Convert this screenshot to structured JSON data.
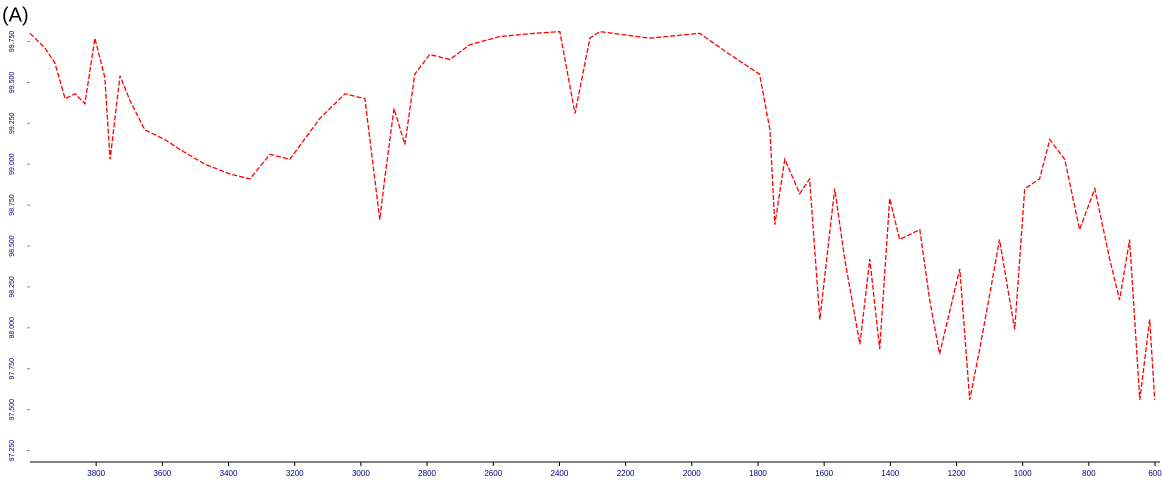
{
  "chart_data": {
    "type": "line",
    "title": "(A)",
    "x": [
      4000,
      3955,
      3925,
      3894,
      3864,
      3834,
      3804,
      3774,
      3758,
      3728,
      3698,
      3653,
      3592,
      3547,
      3471,
      3396,
      3335,
      3275,
      3215,
      3124,
      3048,
      2988,
      2943,
      2928,
      2900,
      2867,
      2837,
      2792,
      2731,
      2671,
      2580,
      2474,
      2399,
      2353,
      2308,
      2278,
      2127,
      1976,
      1885,
      1795,
      1764,
      1749,
      1719,
      1674,
      1644,
      1613,
      1568,
      1538,
      1492,
      1462,
      1432,
      1402,
      1372,
      1311,
      1281,
      1251,
      1190,
      1160,
      1130,
      1100,
      1070,
      1024,
      994,
      949,
      918,
      873,
      828,
      782,
      737,
      707,
      677,
      646,
      616,
      601
    ],
    "series": [
      {
        "color": "#ff0000",
        "values": [
          99.8,
          99.71,
          99.62,
          99.4,
          99.43,
          99.37,
          99.77,
          99.53,
          99.03,
          99.54,
          99.39,
          99.21,
          99.15,
          99.09,
          99.0,
          98.94,
          98.91,
          99.06,
          99.03,
          99.28,
          99.43,
          99.4,
          98.66,
          98.91,
          99.34,
          99.12,
          99.55,
          99.67,
          99.64,
          99.73,
          99.78,
          99.8,
          99.81,
          99.31,
          99.77,
          99.81,
          99.77,
          99.8,
          99.67,
          99.55,
          99.21,
          98.63,
          99.03,
          98.82,
          98.91,
          98.05,
          98.85,
          98.42,
          97.9,
          98.42,
          97.87,
          98.79,
          98.54,
          98.6,
          98.17,
          97.84,
          98.36,
          97.56,
          97.87,
          98.2,
          98.54,
          97.99,
          98.85,
          98.91,
          99.15,
          99.03,
          98.6,
          98.85,
          98.42,
          98.17,
          98.54,
          97.56,
          98.05,
          97.56
        ]
      }
    ],
    "xlim": [
      4000,
      585
    ],
    "xticks": [
      3800,
      3600,
      3400,
      3200,
      3000,
      2800,
      2600,
      2400,
      2200,
      2000,
      1800,
      1600,
      1400,
      1200,
      1000,
      800,
      600
    ],
    "ylim": [
      97.18,
      99.82
    ],
    "yticks": [
      {
        "value": 97.25,
        "label": "97.250"
      },
      {
        "value": 97.5,
        "label": "97.500"
      },
      {
        "value": 97.75,
        "label": "97.750"
      },
      {
        "value": 98,
        "label": "98.000"
      },
      {
        "value": 98.25,
        "label": "98.250"
      },
      {
        "value": 98.5,
        "label": "98.500"
      },
      {
        "value": 98.75,
        "label": "98.750"
      },
      {
        "value": 99,
        "label": "99.000"
      },
      {
        "value": 99.25,
        "label": "99.250"
      },
      {
        "value": 99.5,
        "label": "99.500"
      },
      {
        "value": 99.75,
        "label": "99.750"
      }
    ]
  }
}
